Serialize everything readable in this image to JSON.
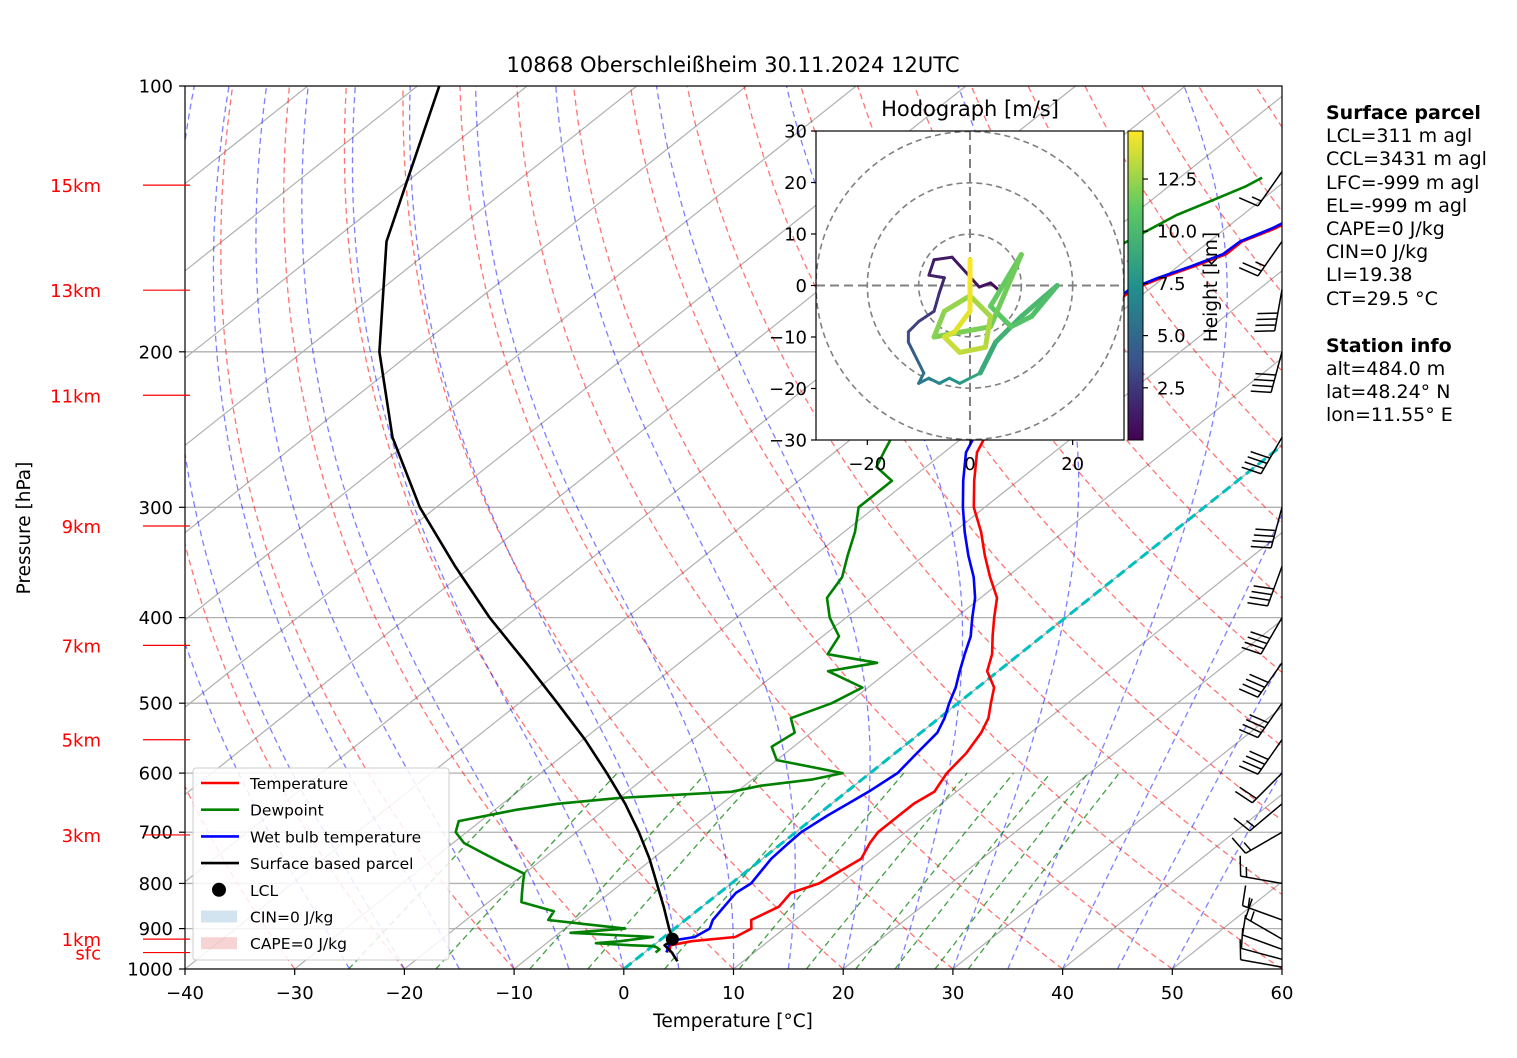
{
  "chart_data": [
    {
      "type": "skew-t log-p",
      "title": "10868 Oberschleißheim 30.11.2024 12UTC",
      "xlabel": "Temperature [°C]",
      "ylabel": "Pressure [hPa]",
      "xlim": [
        -40,
        60
      ],
      "ylim": [
        1000,
        100
      ],
      "x_ticks": [
        -40,
        -30,
        -20,
        -10,
        0,
        10,
        20,
        30,
        40,
        50,
        60
      ],
      "x_tick_labels": [
        "−40",
        "−30",
        "−20",
        "−10",
        "0",
        "10",
        "20",
        "30",
        "40",
        "50",
        "60"
      ],
      "y_ticks": [
        100,
        200,
        300,
        400,
        500,
        600,
        700,
        800,
        900,
        1000
      ],
      "y_tick_labels": [
        "100",
        "200",
        "300",
        "400",
        "500",
        "600",
        "700",
        "800",
        "900",
        "1000"
      ],
      "grid": true,
      "height_labels": [
        {
          "label": "15km",
          "p": 129.5
        },
        {
          "label": "13km",
          "p": 170.3
        },
        {
          "label": "11km",
          "p": 224.0
        },
        {
          "label": "9km",
          "p": 315.0
        },
        {
          "label": "7km",
          "p": 430.0
        },
        {
          "label": "5km",
          "p": 550.0
        },
        {
          "label": "3km",
          "p": 705.0
        },
        {
          "label": "1km",
          "p": 925.0
        },
        {
          "label": "sfc",
          "p": 958.0
        }
      ],
      "legend": {
        "position": "lower-left",
        "entries": [
          "Temperature",
          "Dewpoint",
          "Wet bulb temperature",
          "Surface based parcel",
          "LCL",
          "CIN=0 J/kg",
          "CAPE=0 J/kg"
        ]
      },
      "series": [
        {
          "name": "Temperature",
          "color": "#ff0000",
          "p": [
            958,
            940,
            930,
            920,
            900,
            880,
            850,
            820,
            800,
            750,
            720,
            700,
            670,
            650,
            630,
            600,
            570,
            540,
            520,
            500,
            480,
            460,
            440,
            420,
            400,
            380,
            360,
            340,
            320,
            300,
            280,
            260,
            250,
            240,
            230,
            220,
            210,
            200,
            190,
            185,
            180,
            175,
            170,
            165,
            160,
            155,
            150,
            145,
            140,
            135,
            130,
            127
          ],
          "t": [
            2.3,
            1.5,
            3.0,
            6.5,
            7.0,
            6.0,
            7.0,
            6.5,
            8.0,
            9.0,
            8.0,
            7.5,
            7.5,
            7.5,
            8.0,
            7.0,
            6.5,
            5.5,
            4.5,
            3.0,
            1.5,
            -1.0,
            -2.5,
            -4.5,
            -6.5,
            -8.5,
            -11.5,
            -14.5,
            -17.5,
            -21.0,
            -24.0,
            -27.0,
            -28.0,
            -29.5,
            -31.0,
            -32.5,
            -33.7,
            -35.2,
            -34.5,
            -33.0,
            -32.2,
            -31.5,
            -31.5,
            -30.2,
            -28.5,
            -27.0,
            -27.0,
            -25.5,
            -24.5,
            -23.0,
            -21.0,
            -22.0
          ]
        },
        {
          "name": "Dewpoint",
          "color": "#008000",
          "p": [
            958,
            950,
            945,
            942,
            940,
            935,
            930,
            920,
            910,
            900,
            890,
            880,
            860,
            840,
            820,
            800,
            780,
            760,
            740,
            720,
            700,
            680,
            660,
            650,
            640,
            630,
            620,
            610,
            600,
            580,
            560,
            540,
            520,
            500,
            480,
            460,
            450,
            440,
            420,
            400,
            380,
            360,
            340,
            320,
            300,
            290,
            280,
            270,
            260,
            250,
            240,
            230,
            220,
            210,
            200,
            190,
            180,
            170,
            165,
            160,
            150,
            140,
            135,
            130,
            127
          ],
          "t": [
            1.0,
            1.0,
            0.5,
            0.0,
            -2.0,
            -5.5,
            -3.5,
            -1.0,
            -9.0,
            -4.5,
            -8.5,
            -12.5,
            -13.0,
            -17.0,
            -18.0,
            -19.0,
            -20.0,
            -23.0,
            -26.0,
            -29.0,
            -31.0,
            -32.0,
            -28.0,
            -25.0,
            -20.0,
            -10.5,
            -8.5,
            -4.5,
            -2.5,
            -10.0,
            -12.0,
            -11.5,
            -13.5,
            -11.5,
            -10.5,
            -15.5,
            -12.0,
            -17.5,
            -18.5,
            -21.5,
            -24.0,
            -25.0,
            -27.0,
            -29.0,
            -31.5,
            -31.5,
            -31.5,
            -34.5,
            -35.5,
            -36.5,
            -38.5,
            -39.0,
            -40.0,
            -41.0,
            -42.0,
            -41.0,
            -40.0,
            -39.0,
            -39.0,
            -38.5,
            -37.5,
            -36.0,
            -34.5,
            -33.0,
            -32.5
          ]
        },
        {
          "name": "Wet bulb temperature",
          "color": "#0000ff",
          "p": [
            958,
            940,
            930,
            920,
            900,
            880,
            850,
            820,
            800,
            750,
            720,
            700,
            670,
            650,
            630,
            600,
            570,
            540,
            520,
            500,
            480,
            460,
            440,
            420,
            400,
            380,
            360,
            340,
            320,
            300,
            280,
            260,
            250,
            240,
            230,
            220,
            210,
            200,
            190,
            185,
            180,
            175,
            170,
            165,
            160,
            155,
            150,
            145,
            140,
            135,
            130,
            127
          ],
          "t": [
            2.0,
            1.4,
            0.9,
            2.8,
            3.2,
            2.5,
            2.0,
            1.5,
            1.8,
            0.8,
            0.6,
            0.5,
            1.0,
            1.5,
            2.0,
            2.5,
            2.0,
            1.5,
            0.5,
            -0.8,
            -2.0,
            -3.5,
            -5.0,
            -6.5,
            -8.5,
            -10.5,
            -13.0,
            -16.0,
            -19.0,
            -22.0,
            -25.0,
            -28.0,
            -29.0,
            -30.5,
            -31.5,
            -33.0,
            -34.0,
            -35.5,
            -35.0,
            -33.5,
            -32.5,
            -31.8,
            -31.8,
            -30.5,
            -28.8,
            -27.3,
            -27.2,
            -25.8,
            -24.8,
            -23.3,
            -21.2,
            -22.2
          ]
        },
        {
          "name": "Surface based parcel",
          "color": "#000000",
          "p": [
            980,
            958,
            940,
            928,
            900,
            850,
            800,
            750,
            700,
            650,
            600,
            550,
            500,
            450,
            400,
            350,
            300,
            250,
            200,
            150,
            100
          ],
          "t": [
            4.0,
            2.5,
            1.0,
            1.2,
            -0.5,
            -3.5,
            -6.8,
            -10.3,
            -14.3,
            -18.8,
            -24.0,
            -29.8,
            -36.5,
            -44.0,
            -52.5,
            -61.5,
            -71.5,
            -82.0,
            -93.0,
            -105.0,
            -118.0
          ]
        }
      ],
      "lcl": {
        "p": 925,
        "t": 1.0
      },
      "cin_area": "CIN=0 J/kg",
      "cape_area": "CAPE=0 J/kg",
      "isotherm_0c": {
        "color": "#00bfbf",
        "style": "dashed"
      },
      "wind_barbs": [
        {
          "p": 995,
          "speed_kt": 10,
          "dir_deg": 280
        },
        {
          "p": 975,
          "speed_kt": 12,
          "dir_deg": 285
        },
        {
          "p": 950,
          "speed_kt": 12,
          "dir_deg": 290
        },
        {
          "p": 925,
          "speed_kt": 15,
          "dir_deg": 300
        },
        {
          "p": 880,
          "speed_kt": 15,
          "dir_deg": 290
        },
        {
          "p": 800,
          "speed_kt": 15,
          "dir_deg": 280
        },
        {
          "p": 700,
          "speed_kt": 15,
          "dir_deg": 240
        },
        {
          "p": 650,
          "speed_kt": 15,
          "dir_deg": 230
        },
        {
          "p": 600,
          "speed_kt": 20,
          "dir_deg": 225
        },
        {
          "p": 550,
          "speed_kt": 40,
          "dir_deg": 215
        },
        {
          "p": 500,
          "speed_kt": 40,
          "dir_deg": 215
        },
        {
          "p": 450,
          "speed_kt": 40,
          "dir_deg": 215
        },
        {
          "p": 400,
          "speed_kt": 40,
          "dir_deg": 210
        },
        {
          "p": 350,
          "speed_kt": 40,
          "dir_deg": 200
        },
        {
          "p": 300,
          "speed_kt": 40,
          "dir_deg": 195
        },
        {
          "p": 250,
          "speed_kt": 40,
          "dir_deg": 210
        },
        {
          "p": 200,
          "speed_kt": 40,
          "dir_deg": 195
        },
        {
          "p": 170,
          "speed_kt": 40,
          "dir_deg": 190
        },
        {
          "p": 150,
          "speed_kt": 25,
          "dir_deg": 215
        },
        {
          "p": 125,
          "speed_kt": 15,
          "dir_deg": 215
        }
      ]
    },
    {
      "type": "hodograph",
      "title": "Hodograph [m/s]",
      "xlim": [
        -30,
        30
      ],
      "ylim": [
        -30,
        30
      ],
      "x_ticks": [
        -20,
        0,
        20
      ],
      "x_tick_labels": [
        "−20",
        "0",
        "20"
      ],
      "y_ticks": [
        -30,
        -20,
        -10,
        0,
        10,
        20,
        30
      ],
      "y_tick_labels": [
        "−30",
        "−20",
        "−10",
        "0",
        "10",
        "20",
        "30"
      ],
      "rings": [
        10,
        20,
        30
      ],
      "colorbar": {
        "label": "Height [km]",
        "ticks": [
          2.5,
          5.0,
          7.5,
          10.0,
          12.5
        ],
        "tick_labels": [
          "2.5",
          "5.0",
          "7.5",
          "10.0",
          "12.5"
        ],
        "range": [
          0,
          14.8
        ]
      },
      "trace": [
        {
          "h": 0.0,
          "u": 5.5,
          "v": -0.8
        },
        {
          "h": 0.3,
          "u": 4.0,
          "v": 0.5
        },
        {
          "h": 0.6,
          "u": 1.8,
          "v": -0.3
        },
        {
          "h": 0.9,
          "u": -3.5,
          "v": 5.5
        },
        {
          "h": 1.1,
          "u": -7.0,
          "v": 5.0
        },
        {
          "h": 1.3,
          "u": -8.0,
          "v": 2.0
        },
        {
          "h": 1.5,
          "u": -5.0,
          "v": 1.5
        },
        {
          "h": 1.8,
          "u": -6.0,
          "v": -1.5
        },
        {
          "h": 2.2,
          "u": -7.0,
          "v": -5.0
        },
        {
          "h": 2.6,
          "u": -10.0,
          "v": -7.0
        },
        {
          "h": 3.0,
          "u": -12.0,
          "v": -9.0
        },
        {
          "h": 3.5,
          "u": -12.0,
          "v": -11.0
        },
        {
          "h": 4.0,
          "u": -11.0,
          "v": -13.0
        },
        {
          "h": 4.5,
          "u": -10.0,
          "v": -15.0
        },
        {
          "h": 5.0,
          "u": -9.0,
          "v": -17.0
        },
        {
          "h": 5.5,
          "u": -10.0,
          "v": -19.0
        },
        {
          "h": 6.0,
          "u": -8.0,
          "v": -18.0
        },
        {
          "h": 6.5,
          "u": -6.0,
          "v": -19.0
        },
        {
          "h": 7.0,
          "u": -4.0,
          "v": -18.0
        },
        {
          "h": 7.5,
          "u": -2.0,
          "v": -19.0
        },
        {
          "h": 8.0,
          "u": 0.0,
          "v": -18.0
        },
        {
          "h": 8.5,
          "u": 2.0,
          "v": -17.0
        },
        {
          "h": 9.0,
          "u": 5.0,
          "v": -11.0
        },
        {
          "h": 9.5,
          "u": 10.0,
          "v": -6.0
        },
        {
          "h": 10.0,
          "u": 17.0,
          "v": 0.0
        },
        {
          "h": 10.3,
          "u": 12.0,
          "v": -6.0
        },
        {
          "h": 10.6,
          "u": 8.0,
          "v": -8.0
        },
        {
          "h": 10.9,
          "u": 4.0,
          "v": -4.0
        },
        {
          "h": 11.2,
          "u": 10.0,
          "v": 6.0
        },
        {
          "h": 11.5,
          "u": 4.0,
          "v": -8.0
        },
        {
          "h": 11.8,
          "u": -7.0,
          "v": -10.0
        },
        {
          "h": 12.1,
          "u": -5.0,
          "v": -5.0
        },
        {
          "h": 12.4,
          "u": 0.0,
          "v": -2.0
        },
        {
          "h": 12.7,
          "u": 4.0,
          "v": -6.0
        },
        {
          "h": 13.0,
          "u": 3.0,
          "v": -12.0
        },
        {
          "h": 13.3,
          "u": -2.0,
          "v": -13.0
        },
        {
          "h": 13.6,
          "u": -5.0,
          "v": -10.0
        },
        {
          "h": 13.9,
          "u": -3.0,
          "v": -9.0
        },
        {
          "h": 14.2,
          "u": 0.0,
          "v": -5.0
        },
        {
          "h": 14.5,
          "u": 0.0,
          "v": 1.0
        },
        {
          "h": 14.8,
          "u": 0.0,
          "v": 5.0
        }
      ]
    }
  ],
  "surface_parcel": {
    "header": "Surface parcel",
    "lines": [
      "LCL=311 m agl",
      "CCL=3431 m agl",
      "LFC=-999 m agl",
      "EL=-999 m agl",
      "CAPE=0 J/kg",
      "CIN=0 J/kg",
      "LI=19.38",
      "CT=29.5 °C"
    ]
  },
  "station_info": {
    "header": "Station info",
    "lines": [
      "alt=484.0 m",
      "lat=48.24° N",
      "lon=11.55° E"
    ]
  }
}
